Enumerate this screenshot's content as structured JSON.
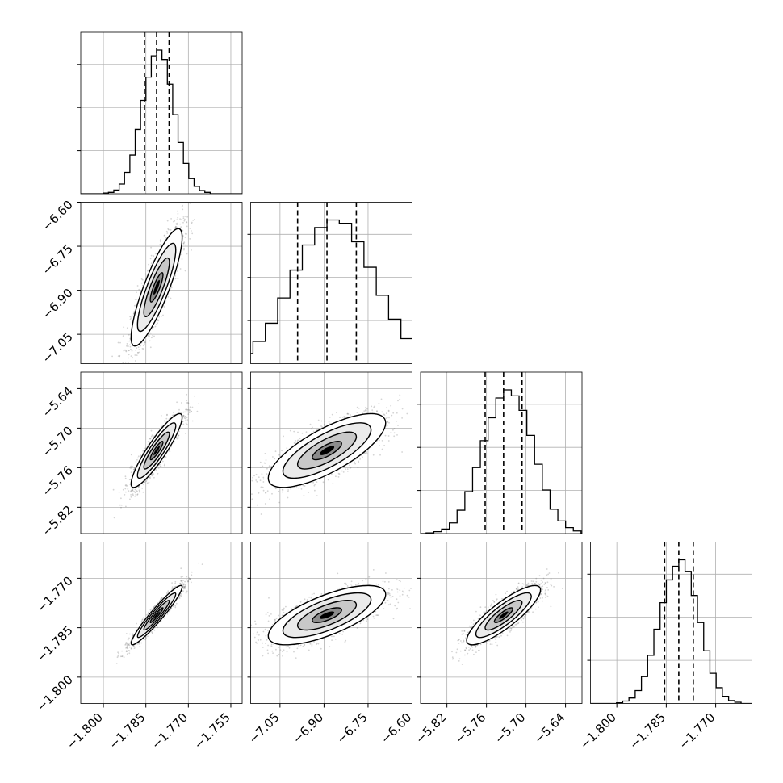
{
  "chart_data": {
    "type": "corner",
    "dimensions": 4,
    "colors": {
      "line": "#000000",
      "grid": "#b0b0b0",
      "scatter": "#555555",
      "background": "#ffffff"
    },
    "axes": [
      {
        "range": [
          -1.808,
          -1.751
        ],
        "ticks": [
          -1.8,
          -1.785,
          -1.77,
          -1.755
        ],
        "tick_labels": [
          "−1.800",
          "−1.785",
          "−1.770",
          "−1.755"
        ]
      },
      {
        "range": [
          -7.15,
          -6.6
        ],
        "ticks": [
          -7.05,
          -6.9,
          -6.75,
          -6.6
        ],
        "tick_labels": [
          "−7.05",
          "−6.90",
          "−6.75",
          "−6.60"
        ]
      },
      {
        "range": [
          -5.86,
          -5.615
        ],
        "ticks": [
          -5.82,
          -5.76,
          -5.7,
          -5.64
        ],
        "tick_labels": [
          "−5.82",
          "−5.76",
          "−5.70",
          "−5.64"
        ]
      },
      {
        "range": [
          -1.808,
          -1.759
        ],
        "ticks": [
          -1.8,
          -1.785,
          -1.77
        ],
        "tick_labels": [
          "−1.800",
          "−1.785",
          "−1.770"
        ]
      }
    ],
    "marginals": [
      {
        "quantiles": [
          -1.7855,
          -1.7812,
          -1.7768
        ],
        "bin_heights": [
          0.3,
          0.6,
          1.6,
          4.2,
          9.3,
          16.8,
          27.9,
          40.5,
          50.6,
          59.9,
          62.4,
          58.3,
          47.6,
          34.3,
          22.3,
          13.2,
          6.6,
          3.2,
          1.4,
          0.6
        ]
      },
      {
        "quantiles": [
          -6.99,
          -6.89,
          -6.79
        ],
        "bin_heights": [
          0.3,
          0.8,
          1.9,
          4.3,
          9.4,
          17.1,
          27.8,
          39.6,
          50.2,
          57.6,
          60.8,
          59.4,
          51.6,
          40.8,
          28.9,
          18.8,
          10.6,
          5.4,
          2.6,
          1.1
        ]
      },
      {
        "quantiles": [
          -5.762,
          -5.734,
          -5.706
        ],
        "bin_heights": [
          0.3,
          0.8,
          1.9,
          4.5,
          9.8,
          17.6,
          27.7,
          39.0,
          48.6,
          56.9,
          60.3,
          57.8,
          51.7,
          41.2,
          29.1,
          18.3,
          10.2,
          5.3,
          2.5,
          1.1
        ]
      },
      {
        "quantiles": [
          -1.7855,
          -1.7812,
          -1.7768
        ],
        "bin_heights": [
          0.3,
          1.0,
          2.3,
          5.4,
          11.2,
          20.1,
          31.0,
          42.1,
          51.6,
          57.3,
          60.0,
          55.2,
          45.1,
          33.8,
          22.0,
          12.6,
          6.6,
          3.0,
          1.2,
          0.5
        ]
      }
    ],
    "joint_distribution": {
      "mean": [
        -1.7812,
        -6.89,
        -5.734,
        -1.7812
      ],
      "sd": [
        0.0045,
        0.1,
        0.028,
        0.0045
      ],
      "correlation": [
        [
          1.0,
          0.85,
          0.9,
          0.95
        ],
        [
          0.85,
          1.0,
          0.75,
          0.7
        ],
        [
          0.9,
          0.75,
          1.0,
          0.85
        ],
        [
          0.95,
          0.7,
          0.85,
          1.0
        ]
      ],
      "contour_sigmas": [
        0.5,
        1.0,
        1.5,
        2.0
      ]
    }
  }
}
